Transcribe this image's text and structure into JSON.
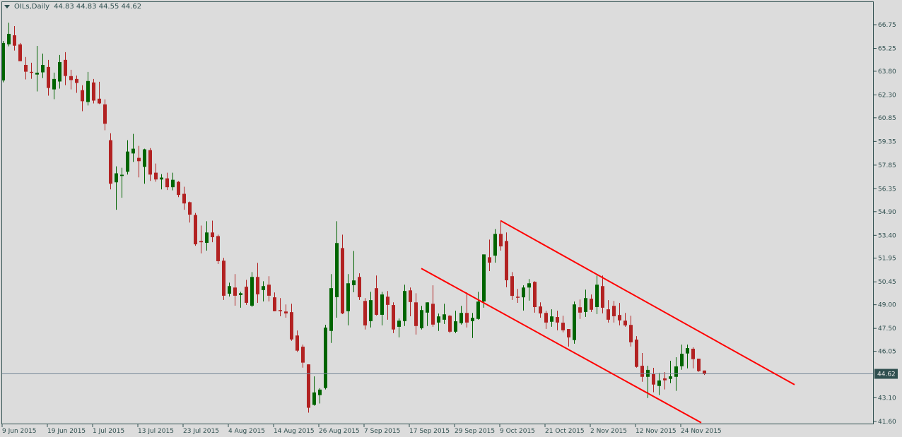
{
  "header": {
    "symbol": "OILs,Daily",
    "ohlc": "44.83 44.83 44.55 44.62",
    "menu_icon": "triangle-down-icon"
  },
  "colors": {
    "background": "#dcdcdc",
    "frame": "#2f4f4f",
    "bull": "#006400",
    "bear": "#b22222",
    "bid_line": "#778899",
    "trendline": "#ff0000"
  },
  "chart_data": {
    "type": "candlestick",
    "ylim": [
      41.6,
      66.75
    ],
    "y_ticks": [
      "66.75",
      "65.25",
      "63.80",
      "62.30",
      "60.85",
      "59.35",
      "57.85",
      "56.35",
      "54.90",
      "53.40",
      "51.95",
      "50.45",
      "49.00",
      "47.50",
      "46.05",
      "43.10",
      "41.60"
    ],
    "current_price": "44.62",
    "x_ticks": [
      {
        "bar": 0,
        "label": "9 Jun 2015"
      },
      {
        "bar": 8,
        "label": "19 Jun 2015"
      },
      {
        "bar": 16,
        "label": "1 Jul 2015"
      },
      {
        "bar": 24,
        "label": "13 Jul 2015"
      },
      {
        "bar": 32,
        "label": "23 Jul 2015"
      },
      {
        "bar": 40,
        "label": "4 Aug 2015"
      },
      {
        "bar": 48,
        "label": "14 Aug 2015"
      },
      {
        "bar": 56,
        "label": "26 Aug 2015"
      },
      {
        "bar": 64,
        "label": "7 Sep 2015"
      },
      {
        "bar": 72,
        "label": "17 Sep 2015"
      },
      {
        "bar": 80,
        "label": "29 Sep 2015"
      },
      {
        "bar": 88,
        "label": "9 Oct 2015"
      },
      {
        "bar": 96,
        "label": "21 Oct 2015"
      },
      {
        "bar": 104,
        "label": "2 Nov 2015"
      },
      {
        "bar": 112,
        "label": "12 Nov 2015"
      },
      {
        "bar": 120,
        "label": "24 Nov 2015"
      }
    ],
    "ohlc": [
      [
        63.22,
        65.72,
        63.1,
        65.59
      ],
      [
        65.51,
        66.88,
        65.38,
        66.17
      ],
      [
        66.08,
        66.66,
        65.11,
        65.42
      ],
      [
        65.5,
        65.59,
        64.44,
        64.44
      ],
      [
        64.2,
        64.7,
        63.28,
        63.77
      ],
      [
        63.76,
        64.34,
        63.32,
        63.7
      ],
      [
        63.59,
        65.41,
        62.52,
        63.71
      ],
      [
        63.73,
        64.92,
        63.37,
        64.2
      ],
      [
        64.07,
        64.52,
        62.25,
        62.74
      ],
      [
        62.65,
        63.71,
        62.03,
        63.31
      ],
      [
        63.15,
        64.83,
        62.7,
        64.38
      ],
      [
        64.52,
        65.01,
        62.92,
        63.5
      ],
      [
        63.49,
        63.89,
        62.65,
        63.24
      ],
      [
        63.31,
        63.53,
        62.43,
        63.06
      ],
      [
        62.6,
        62.91,
        61.27,
        61.9
      ],
      [
        61.85,
        63.76,
        61.63,
        63.18
      ],
      [
        63.09,
        63.31,
        61.76,
        61.94
      ],
      [
        62.06,
        63.13,
        61.72,
        61.76
      ],
      [
        61.7,
        62.02,
        60.06,
        60.47
      ],
      [
        59.43,
        59.87,
        56.31,
        56.67
      ],
      [
        56.76,
        57.77,
        55.02,
        57.33
      ],
      [
        57.16,
        57.68,
        55.78,
        57.24
      ],
      [
        57.43,
        59.43,
        57.25,
        58.71
      ],
      [
        58.59,
        59.83,
        58.05,
        58.89
      ],
      [
        58.31,
        59.07,
        57.07,
        58.1
      ],
      [
        57.74,
        58.89,
        56.67,
        58.85
      ],
      [
        58.8,
        58.93,
        56.85,
        57.25
      ],
      [
        57.37,
        57.95,
        56.8,
        56.94
      ],
      [
        56.94,
        57.28,
        56.31,
        57.06
      ],
      [
        57.01,
        57.37,
        56.27,
        56.45
      ],
      [
        56.45,
        57.37,
        56.25,
        56.92
      ],
      [
        56.79,
        56.84,
        55.82,
        55.96
      ],
      [
        56.03,
        56.48,
        55.02,
        55.42
      ],
      [
        55.5,
        55.54,
        54.21,
        54.71
      ],
      [
        54.69,
        54.82,
        52.74,
        52.83
      ],
      [
        53.04,
        54.02,
        52.25,
        52.96
      ],
      [
        52.92,
        54.29,
        52.43,
        53.58
      ],
      [
        53.58,
        54.33,
        52.96,
        53.28
      ],
      [
        53.35,
        53.44,
        51.58,
        51.76
      ],
      [
        51.79,
        51.97,
        49.3,
        49.57
      ],
      [
        49.7,
        50.4,
        49.52,
        50.18
      ],
      [
        50.09,
        50.94,
        48.94,
        49.57
      ],
      [
        49.61,
        49.82,
        48.81,
        49.73
      ],
      [
        50.14,
        50.58,
        48.99,
        49.12
      ],
      [
        48.94,
        51.07,
        48.85,
        50.76
      ],
      [
        50.76,
        51.65,
        49.12,
        49.66
      ],
      [
        49.93,
        50.49,
        49.21,
        50.18
      ],
      [
        50.27,
        50.81,
        49.21,
        49.57
      ],
      [
        49.47,
        49.78,
        48.59,
        48.59
      ],
      [
        48.66,
        49.42,
        48.27,
        48.59
      ],
      [
        48.57,
        49.02,
        48.18,
        48.45
      ],
      [
        48.53,
        49.06,
        46.71,
        46.8
      ],
      [
        47.05,
        47.37,
        46.0,
        46.09
      ],
      [
        46.34,
        46.47,
        45.01,
        45.33
      ],
      [
        45.22,
        45.22,
        42.16,
        42.47
      ],
      [
        42.65,
        44.46,
        42.6,
        43.44
      ],
      [
        43.27,
        43.71,
        42.74,
        43.62
      ],
      [
        43.72,
        47.73,
        43.63,
        47.55
      ],
      [
        47.34,
        50.94,
        46.58,
        50.05
      ],
      [
        49.48,
        54.29,
        48.18,
        52.91
      ],
      [
        52.59,
        53.44,
        48.4,
        48.45
      ],
      [
        48.59,
        50.94,
        47.69,
        50.36
      ],
      [
        50.24,
        52.41,
        49.79,
        50.54
      ],
      [
        50.76,
        50.99,
        49.3,
        49.48
      ],
      [
        49.24,
        49.42,
        47.43,
        47.69
      ],
      [
        47.96,
        49.82,
        47.56,
        49.29
      ],
      [
        50.05,
        50.85,
        48.32,
        48.36
      ],
      [
        48.36,
        49.82,
        47.69,
        49.65
      ],
      [
        49.51,
        49.87,
        48.05,
        48.99
      ],
      [
        48.98,
        49.15,
        47.2,
        47.43
      ],
      [
        47.6,
        48.13,
        46.93,
        47.99
      ],
      [
        47.96,
        50.27,
        47.65,
        49.87
      ],
      [
        49.91,
        50.09,
        48.27,
        49.17
      ],
      [
        49.15,
        49.73,
        47.11,
        47.65
      ],
      [
        47.51,
        48.93,
        47.43,
        48.66
      ],
      [
        48.5,
        49.15,
        47.65,
        49.15
      ],
      [
        49.06,
        50.23,
        47.6,
        47.74
      ],
      [
        47.87,
        48.44,
        47.34,
        48.26
      ],
      [
        48.05,
        49.06,
        47.78,
        48.39
      ],
      [
        48.3,
        48.35,
        47.2,
        47.29
      ],
      [
        47.29,
        48.62,
        47.2,
        47.95
      ],
      [
        47.83,
        48.93,
        47.74,
        48.48
      ],
      [
        48.48,
        49.78,
        47.56,
        47.87
      ],
      [
        47.96,
        48.48,
        46.89,
        48.17
      ],
      [
        48.1,
        49.82,
        48.05,
        49.2
      ],
      [
        49.21,
        52.19,
        48.81,
        52.19
      ],
      [
        52.01,
        53.13,
        51.13,
        51.67
      ],
      [
        52.11,
        53.8,
        51.67,
        53.49
      ],
      [
        53.49,
        54.33,
        52.43,
        52.7
      ],
      [
        53.04,
        53.58,
        50.11,
        50.55
      ],
      [
        50.81,
        51.07,
        49.3,
        49.56
      ],
      [
        49.51,
        50.0,
        49.12,
        49.44
      ],
      [
        49.47,
        50.23,
        48.63,
        50.09
      ],
      [
        50.09,
        50.63,
        49.26,
        50.36
      ],
      [
        50.45,
        50.49,
        48.5,
        48.85
      ],
      [
        48.89,
        49.15,
        48.18,
        48.45
      ],
      [
        48.48,
        48.62,
        47.47,
        47.87
      ],
      [
        47.92,
        48.71,
        47.6,
        48.26
      ],
      [
        48.22,
        48.62,
        47.38,
        47.87
      ],
      [
        47.86,
        48.3,
        47.25,
        47.38
      ],
      [
        47.46,
        47.46,
        46.35,
        46.93
      ],
      [
        46.76,
        49.2,
        46.53,
        49.02
      ],
      [
        48.84,
        49.33,
        48.1,
        48.5
      ],
      [
        48.54,
        49.96,
        48.23,
        49.42
      ],
      [
        49.38,
        49.65,
        48.54,
        48.68
      ],
      [
        48.85,
        50.85,
        48.41,
        50.27
      ],
      [
        50.18,
        50.85,
        48.45,
        48.81
      ],
      [
        48.71,
        49.29,
        47.87,
        48.05
      ],
      [
        48.93,
        49.24,
        47.87,
        48.27
      ],
      [
        48.35,
        49.11,
        47.69,
        48.01
      ],
      [
        47.99,
        48.48,
        47.6,
        47.69
      ],
      [
        47.72,
        48.3,
        46.35,
        46.62
      ],
      [
        46.79,
        47.01,
        45.01,
        45.06
      ],
      [
        45.13,
        45.94,
        44.12,
        44.43
      ],
      [
        44.43,
        45.13,
        43.09,
        44.87
      ],
      [
        44.6,
        45.0,
        43.45,
        43.94
      ],
      [
        43.85,
        44.69,
        43.27,
        44.2
      ],
      [
        44.33,
        44.73,
        43.63,
        44.21
      ],
      [
        44.3,
        45.45,
        44.03,
        44.46
      ],
      [
        44.43,
        45.67,
        43.54,
        45.09
      ],
      [
        45.1,
        46.47,
        44.88,
        45.89
      ],
      [
        45.91,
        46.47,
        44.97,
        46.25
      ],
      [
        46.21,
        46.3,
        44.97,
        45.55
      ],
      [
        45.58,
        45.58,
        44.75,
        44.79
      ],
      [
        44.83,
        44.83,
        44.55,
        44.62
      ]
    ],
    "trendlines": [
      {
        "from": {
          "bar": 88,
          "price": 54.33
        },
        "to": {
          "bar": 140,
          "price": 43.93
        }
      },
      {
        "from": {
          "bar": 74,
          "price": 51.3
        },
        "to": {
          "bar": 123.5,
          "price": 41.52
        }
      }
    ]
  }
}
